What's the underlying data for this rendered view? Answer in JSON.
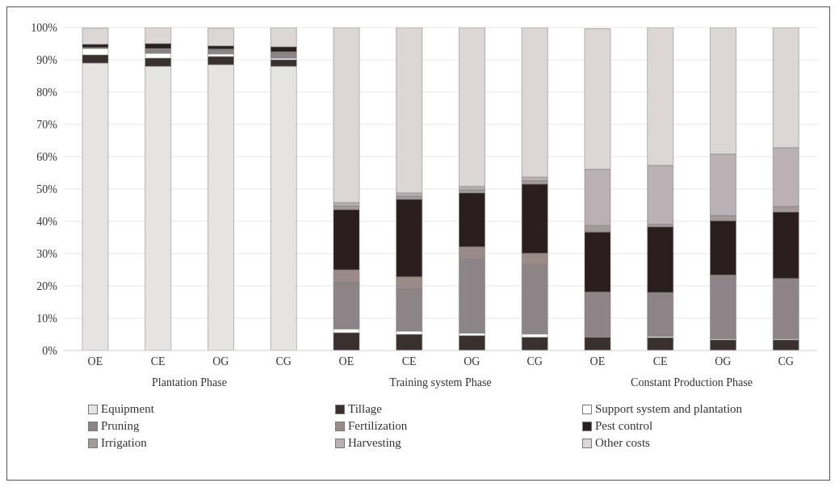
{
  "chart_data": {
    "type": "bar",
    "stacked": true,
    "categories": [
      "OE",
      "CE",
      "OG",
      "CG",
      "OE",
      "CE",
      "OG",
      "CG",
      "OE",
      "CE",
      "OG",
      "CG"
    ],
    "series": [
      {
        "name": "Equipment",
        "color": "#e6e3e3",
        "values": [
          89,
          88,
          88.5,
          88,
          0,
          0,
          0,
          0,
          0,
          0,
          0,
          0
        ]
      },
      {
        "name": "Tillage",
        "color": "#3a302e",
        "values": [
          2.5,
          2.5,
          2.5,
          2,
          5.5,
          5,
          4.6,
          4.1,
          4.1,
          4,
          3.3,
          3.3
        ]
      },
      {
        "name": "Support system and plantation",
        "color": "#ffffff",
        "values": [
          2,
          1.5,
          0.8,
          0.5,
          1.2,
          1,
          0.8,
          1,
          null,
          0.4,
          0.3,
          0.3
        ]
      },
      {
        "name": "Pruning",
        "color": "#8c8486",
        "values": [
          0.3,
          1,
          1.5,
          1.5,
          14.3,
          13,
          23,
          21.6,
          14,
          13.6,
          19.8,
          18.7
        ]
      },
      {
        "name": "Fertilization",
        "color": "#9a8a88",
        "values": [
          null,
          0.5,
          null,
          0.5,
          4,
          3.8,
          3.7,
          3.4,
          0,
          0,
          0,
          0
        ]
      },
      {
        "name": "Pest control",
        "color": "#2a1e1e",
        "values": [
          1,
          1.5,
          1,
          1.5,
          18.6,
          24,
          16.7,
          21.4,
          18.6,
          20.3,
          16.8,
          20.6
        ]
      },
      {
        "name": "Irrigation",
        "color": "#a39a9a",
        "values": [
          0,
          0,
          0,
          0,
          1.2,
          1,
          1,
          1.1,
          2,
          0.8,
          1.6,
          1.7
        ]
      },
      {
        "name": "Harvesting",
        "color": "#b9b1b3",
        "values": [
          0,
          0,
          0,
          0,
          1,
          1,
          1,
          1.1,
          17.4,
          18.2,
          19,
          18.2
        ]
      },
      {
        "name": "Other costs",
        "color": "#dcd6d6",
        "values": [
          5,
          5,
          5.5,
          6,
          54.2,
          51.2,
          49.2,
          46.3,
          43.5,
          42.7,
          39.2,
          37.2
        ]
      }
    ],
    "ylim": [
      0,
      100
    ],
    "yticks": [
      {
        "value": 0,
        "label": "0%"
      },
      {
        "value": 10,
        "label": "10%"
      },
      {
        "value": 20,
        "label": "20%"
      },
      {
        "value": 30,
        "label": "30%"
      },
      {
        "value": 40,
        "label": "40%"
      },
      {
        "value": 50,
        "label": "50%"
      },
      {
        "value": 60,
        "label": "60%"
      },
      {
        "value": 70,
        "label": "70%"
      },
      {
        "value": 80,
        "label": "80%"
      },
      {
        "value": 90,
        "label": "90%"
      },
      {
        "value": 100,
        "label": "100%"
      }
    ],
    "annotations": [
      "Plantation Phase",
      "Training system Phase",
      "Constant Production Phase"
    ],
    "grid": "y",
    "legend": "bottom"
  }
}
